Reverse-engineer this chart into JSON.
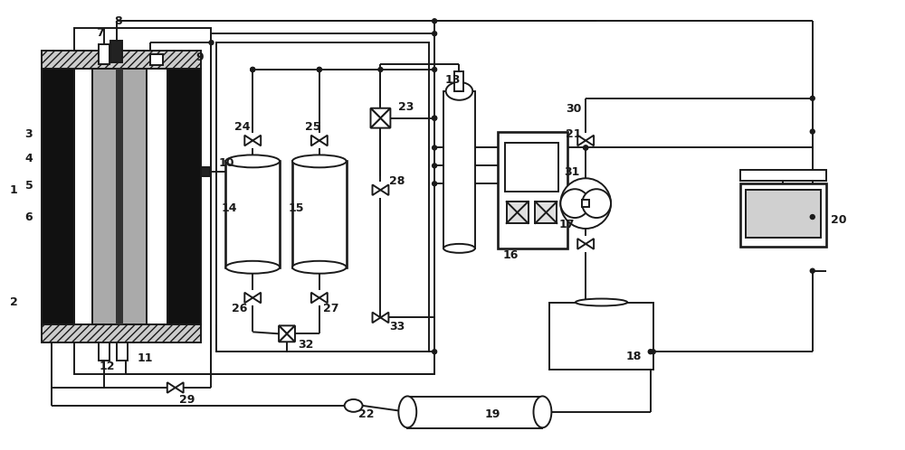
{
  "bg_color": "#ffffff",
  "line_color": "#1a1a1a",
  "label_color": "#000000",
  "figsize": [
    10.0,
    4.98
  ],
  "dpi": 100
}
